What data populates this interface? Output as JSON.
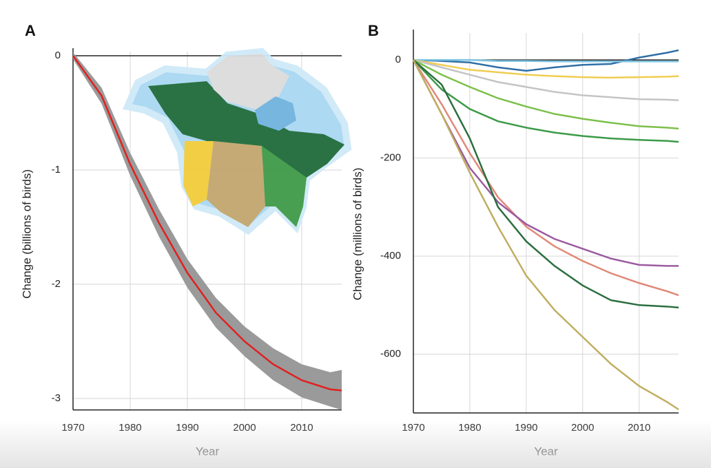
{
  "chart_data": [
    {
      "type": "line",
      "title": "A",
      "x_label": "Year",
      "y_label": "Change (billions of birds)",
      "x": [
        1970,
        1975,
        1980,
        1985,
        1990,
        1995,
        2000,
        2005,
        2010,
        2015,
        2017
      ],
      "series": [
        {
          "color": "#e02020",
          "values": [
            0,
            -0.35,
            -0.95,
            -1.46,
            -1.9,
            -2.25,
            -2.5,
            -2.7,
            -2.84,
            -2.92,
            -2.93
          ]
        }
      ],
      "band_upper": [
        0.03,
        -0.28,
        -0.85,
        -1.34,
        -1.78,
        -2.12,
        -2.37,
        -2.56,
        -2.7,
        -2.77,
        -2.75
      ],
      "band_lower": [
        -0.03,
        -0.42,
        -1.05,
        -1.58,
        -2.03,
        -2.38,
        -2.63,
        -2.84,
        -2.99,
        -3.07,
        -3.1
      ],
      "band_color": "#9a9a9a",
      "xlim": [
        1970,
        2017
      ],
      "ylim": [
        -3.1,
        0
      ],
      "xticks": [
        1970,
        1980,
        1990,
        2000,
        2010
      ],
      "yticks": [
        0,
        -1,
        -2,
        -3
      ],
      "grid": true
    },
    {
      "type": "line",
      "title": "B",
      "x_label": "Year",
      "y_label": "Change (millions of birds)",
      "x": [
        1970,
        1975,
        1980,
        1985,
        1990,
        1995,
        2000,
        2005,
        2010,
        2015,
        2017
      ],
      "series": [
        {
          "color": "#2f6ea6",
          "values": [
            0,
            -2,
            -5,
            -15,
            -22,
            -15,
            -10,
            -8,
            5,
            15,
            20
          ]
        },
        {
          "color": "#7cc3e0",
          "values": [
            0,
            0,
            0,
            -2,
            -2,
            -3,
            -3,
            -3,
            -3,
            -3,
            -3
          ]
        },
        {
          "color": "#f0cd50",
          "values": [
            0,
            -10,
            -20,
            -25,
            -30,
            -33,
            -35,
            -36,
            -35,
            -34,
            -33
          ]
        },
        {
          "color": "#c4c4c4",
          "values": [
            0,
            -15,
            -30,
            -45,
            -55,
            -65,
            -72,
            -76,
            -80,
            -81,
            -82
          ]
        },
        {
          "color": "#7cbf4a",
          "values": [
            0,
            -30,
            -55,
            -78,
            -95,
            -110,
            -120,
            -128,
            -135,
            -138,
            -140
          ]
        },
        {
          "color": "#3a9a47",
          "values": [
            0,
            -60,
            -100,
            -125,
            -138,
            -148,
            -155,
            -160,
            -163,
            -165,
            -167
          ]
        },
        {
          "color": "#e08878",
          "values": [
            0,
            -90,
            -190,
            -280,
            -340,
            -380,
            -410,
            -435,
            -455,
            -472,
            -480
          ]
        },
        {
          "color": "#9b5aa0",
          "values": [
            0,
            -110,
            -220,
            -290,
            -335,
            -365,
            -385,
            -405,
            -418,
            -420,
            -420
          ]
        },
        {
          "color": "#2b6e3f",
          "values": [
            0,
            -50,
            -160,
            -300,
            -370,
            -420,
            -460,
            -490,
            -500,
            -503,
            -505
          ]
        },
        {
          "color": "#bfae60",
          "values": [
            0,
            -110,
            -230,
            -340,
            -440,
            -510,
            -565,
            -620,
            -665,
            -698,
            -713
          ]
        }
      ],
      "xlim": [
        1970,
        2017
      ],
      "ylim": [
        -720,
        55
      ],
      "xticks": [
        1970,
        1980,
        1990,
        2000,
        2010
      ],
      "yticks": [
        0,
        -200,
        -400,
        -600
      ],
      "grid": true
    }
  ]
}
